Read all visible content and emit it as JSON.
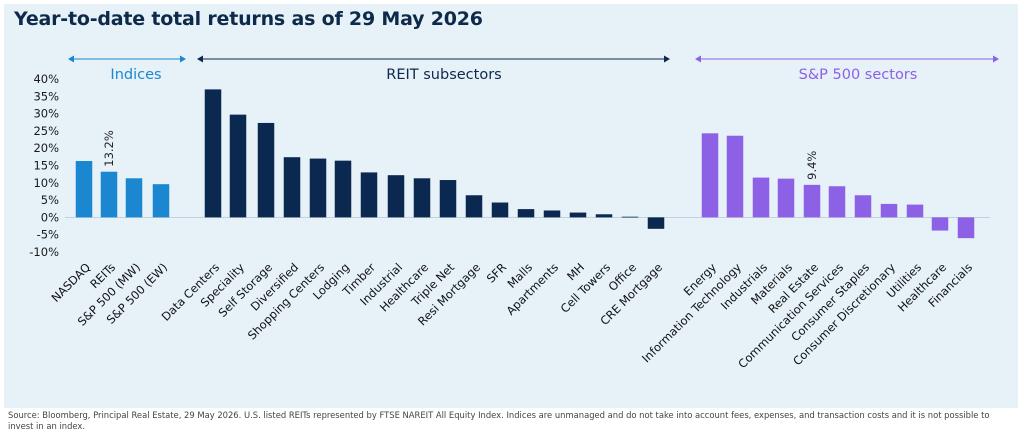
{
  "title": "Year-to-date total returns as of 29 May 2026",
  "source": "Source: Bloomberg, Principal Real Estate, 29 May 2026. U.S. listed REITs represented by FTSE NAREIT All Equity Index. Indices are unmanaged and do not take into account fees, expenses, and transaction costs and it is not possible to invest in an index.",
  "colors": {
    "indices": "#1a87d0",
    "reit": "#0a2850",
    "sp500": "#8c61e6",
    "axis_text": "#1a1a1a",
    "panel_background": "#e6f1f8"
  },
  "chart_data": {
    "type": "bar",
    "title": "Year-to-date total returns as of 29 May 2026",
    "ylim": [
      -10,
      40
    ],
    "yticks": [
      -10,
      -5,
      0,
      5,
      10,
      15,
      20,
      25,
      30,
      35,
      40
    ],
    "ytick_format": "percent",
    "grid": false,
    "groups": [
      {
        "name": "Indices",
        "color": "#1a87d0",
        "label_color": "#1a87d0",
        "categories": [
          "NASDAQ",
          "REITs",
          "S&P 500 (MW)",
          "S&P 500 (EW)"
        ],
        "values": [
          16.3,
          13.2,
          11.3,
          9.6
        ]
      },
      {
        "name": "REIT subsectors",
        "color": "#0a2850",
        "label_color": "#0d2a4a",
        "categories": [
          "Data Centers",
          "Speciality",
          "Self Storage",
          "Diversified",
          "Shopping Centers",
          "Lodging",
          "Timber",
          "Industrial",
          "Healthcare",
          "Triple Net",
          "Resi Mortgage",
          "SFR",
          "Malls",
          "Apartments",
          "MH",
          "Cell Towers",
          "Office",
          "CRE Mortgage"
        ],
        "values": [
          37.0,
          29.7,
          27.3,
          17.4,
          17.0,
          16.4,
          13.0,
          12.2,
          11.3,
          10.8,
          6.4,
          4.3,
          2.4,
          2.0,
          1.4,
          0.9,
          0.2,
          -3.3
        ]
      },
      {
        "name": "S&P 500 sectors",
        "color": "#8c61e6",
        "label_color": "#8c61e6",
        "categories": [
          "Energy",
          "Information Technology",
          "Industrials",
          "Materials",
          "Real Estate",
          "Communication Services",
          "Consumer Staples",
          "Consumer Discretionary",
          "Utilities",
          "Healthcare",
          "Financials"
        ],
        "values": [
          24.3,
          23.6,
          11.5,
          11.2,
          9.4,
          9.0,
          6.4,
          3.9,
          3.7,
          -3.8,
          -6.0
        ]
      }
    ],
    "data_labels": [
      {
        "group": 0,
        "index": 1,
        "text": "13.2%"
      },
      {
        "group": 2,
        "index": 4,
        "text": "9.4%"
      }
    ]
  }
}
